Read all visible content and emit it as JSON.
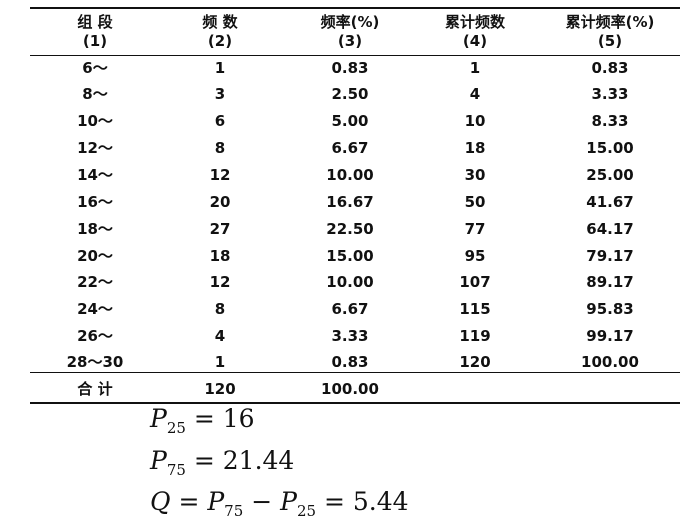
{
  "headers": [
    {
      "line1": "组  段",
      "line2": "(1)"
    },
    {
      "line1": "频  数",
      "line2": "(2)"
    },
    {
      "line1": "频率(%)",
      "line2": "(3)"
    },
    {
      "line1": "累计频数",
      "line2": "(4)"
    },
    {
      "line1": "累计频率(%)",
      "line2": "(5)"
    }
  ],
  "rows": [
    [
      "6～",
      "1",
      "0.83",
      "1",
      "0.83"
    ],
    [
      "8～",
      "3",
      "2.50",
      "4",
      "3.33"
    ],
    [
      "10～",
      "6",
      "5.00",
      "10",
      "8.33"
    ],
    [
      "12～",
      "8",
      "6.67",
      "18",
      "15.00"
    ],
    [
      "14～",
      "12",
      "10.00",
      "30",
      "25.00"
    ],
    [
      "16～",
      "20",
      "16.67",
      "50",
      "41.67"
    ],
    [
      "18～",
      "27",
      "22.50",
      "77",
      "64.17"
    ],
    [
      "20～",
      "18",
      "15.00",
      "95",
      "79.17"
    ],
    [
      "22～",
      "12",
      "10.00",
      "107",
      "89.17"
    ],
    [
      "24～",
      "8",
      "6.67",
      "115",
      "95.83"
    ],
    [
      "26～",
      "4",
      "3.33",
      "119",
      "99.17"
    ],
    [
      "28～30",
      "1",
      "0.83",
      "120",
      "100.00"
    ]
  ],
  "total": {
    "label": "合  计",
    "count": "120",
    "freq": "100.00"
  },
  "formulas": [
    {
      "lhs": "P",
      "lhs_sub": "25",
      "rhs": "= 16"
    },
    {
      "lhs": "P",
      "lhs_sub": "75",
      "rhs": "= 21.44"
    },
    {
      "lhs": "Q",
      "mid": "= P",
      "mid_sub1": "75",
      "mid2": " − P",
      "mid_sub2": "25",
      "rhs": " = 5.44"
    }
  ]
}
